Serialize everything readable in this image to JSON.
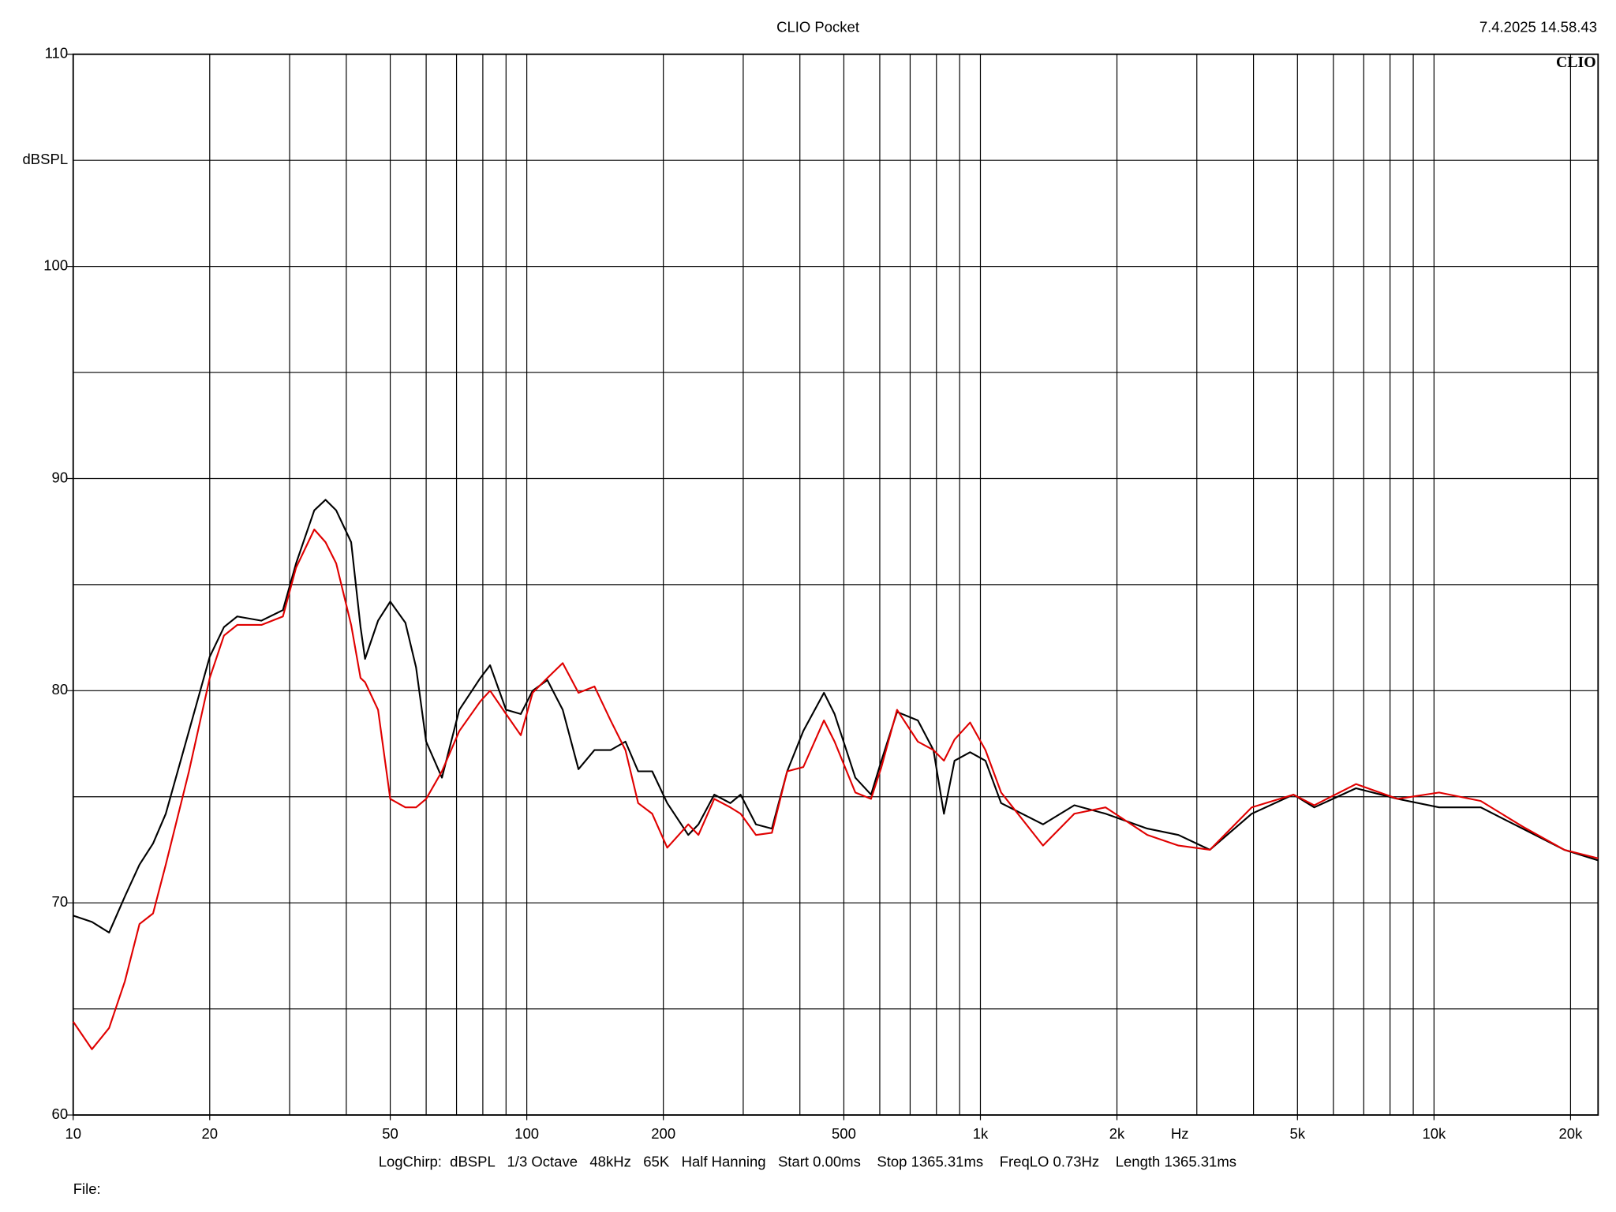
{
  "chart_data": {
    "type": "line",
    "title": "CLIO Pocket",
    "timestamp": "7.4.2025 14.58.43",
    "brand": "CLIO",
    "ylabel": "dBSPL",
    "xlabel": "Hz",
    "footer": "LogChirp:  dBSPL   1/3 Octave   48kHz   65K   Half Hanning   Start 0.00ms    Stop 1365.31ms    FreqLO 0.73Hz    Length 1365.31ms",
    "file_label": "File:",
    "log_x": true,
    "grid": true,
    "xlim": [
      10,
      23000
    ],
    "ylim": [
      60,
      110
    ],
    "xticks": [
      10,
      20,
      50,
      100,
      200,
      500,
      {
        "value": 1000,
        "label": "1k"
      },
      {
        "value": 2000,
        "label": "2k"
      },
      {
        "value": 5000,
        "label": "5k"
      },
      {
        "value": 10000,
        "label": "10k"
      },
      {
        "value": 20000,
        "label": "20k"
      }
    ],
    "xgrid_minor": [
      30,
      40,
      60,
      70,
      80,
      90,
      300,
      400,
      600,
      700,
      800,
      900,
      3000,
      4000,
      6000,
      7000,
      8000,
      9000
    ],
    "yticks": [
      60,
      70,
      80,
      90,
      100,
      110
    ],
    "ygrid_minor": [
      65,
      75,
      85,
      95,
      105
    ],
    "x": [
      10,
      11,
      12,
      13,
      14,
      15,
      16,
      18,
      20,
      21.5,
      23,
      26,
      29,
      31,
      34,
      36,
      38,
      41,
      43,
      44,
      47,
      50,
      54,
      57,
      60,
      65,
      71,
      79,
      83,
      90,
      97,
      103,
      111,
      120,
      130,
      141,
      153,
      165,
      176,
      189,
      204,
      227,
      239,
      259,
      281,
      296,
      320,
      347,
      375,
      407,
      452,
      477,
      530,
      574,
      605,
      655,
      728,
      788,
      831,
      877,
      949,
      1026,
      1111,
      1374,
      1611,
      1888,
      2333,
      2733,
      3206,
      3963,
      4898,
      5445,
      6730,
      8318,
      10260,
      12680,
      15670,
      19370,
      23000
    ],
    "series": [
      {
        "color": "#000000",
        "values": [
          69.4,
          69.1,
          68.6,
          70.3,
          71.8,
          72.8,
          74.2,
          78.1,
          81.6,
          83.0,
          83.5,
          83.3,
          83.8,
          86.0,
          88.5,
          89.0,
          88.5,
          87.0,
          83.0,
          81.5,
          83.3,
          84.2,
          83.2,
          81.1,
          77.6,
          75.9,
          79.1,
          80.6,
          81.2,
          79.1,
          78.9,
          80.0,
          80.5,
          79.1,
          76.3,
          77.2,
          77.2,
          77.6,
          76.2,
          76.2,
          74.7,
          73.2,
          73.7,
          75.1,
          74.7,
          75.1,
          73.7,
          73.5,
          76.2,
          78.1,
          79.9,
          78.9,
          75.9,
          75.1,
          76.7,
          79.0,
          78.6,
          77.2,
          74.2,
          76.7,
          77.1,
          76.7,
          74.7,
          73.7,
          74.6,
          74.2,
          73.5,
          73.2,
          72.5,
          74.2,
          75.1,
          74.5,
          75.4,
          74.9,
          74.5,
          74.5,
          73.5,
          72.5,
          72.0
        ]
      },
      {
        "color": "#e00000",
        "values": [
          64.4,
          63.1,
          64.1,
          66.3,
          69.0,
          69.5,
          71.8,
          76.2,
          80.6,
          82.6,
          83.1,
          83.1,
          83.5,
          85.8,
          87.6,
          87.0,
          86.0,
          83.1,
          80.6,
          80.4,
          79.1,
          74.9,
          74.5,
          74.5,
          74.9,
          76.2,
          78.1,
          79.5,
          80.0,
          78.9,
          77.9,
          79.9,
          80.6,
          81.3,
          79.9,
          80.2,
          78.6,
          77.2,
          74.7,
          74.2,
          72.6,
          73.7,
          73.2,
          74.9,
          74.5,
          74.2,
          73.2,
          73.3,
          76.2,
          76.4,
          78.6,
          77.6,
          75.2,
          74.9,
          76.4,
          79.1,
          77.6,
          77.2,
          76.7,
          77.7,
          78.5,
          77.2,
          75.2,
          72.7,
          74.2,
          74.5,
          73.2,
          72.7,
          72.5,
          74.5,
          75.1,
          74.6,
          75.6,
          74.9,
          75.2,
          74.8,
          73.6,
          72.5,
          72.1
        ]
      }
    ]
  }
}
